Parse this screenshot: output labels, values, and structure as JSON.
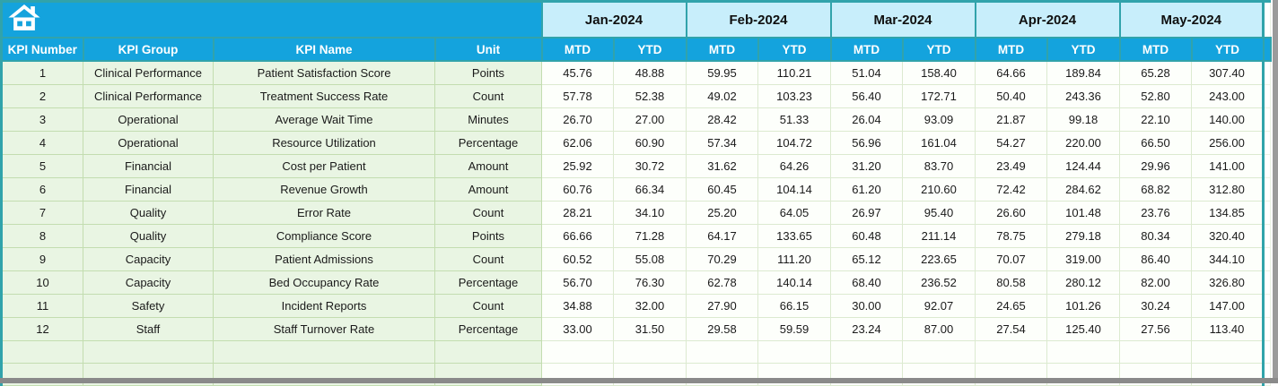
{
  "banner": {
    "home_icon": "home"
  },
  "table": {
    "left_headers": [
      "KPI Number",
      "KPI Group",
      "KPI Name",
      "Unit"
    ],
    "months": [
      "Jan-2024",
      "Feb-2024",
      "Mar-2024",
      "Apr-2024",
      "May-2024"
    ],
    "sub_headers": [
      "MTD",
      "YTD"
    ],
    "rows": [
      {
        "number": "1",
        "group": "Clinical Performance",
        "name": "Patient Satisfaction Score",
        "unit": "Points",
        "values": [
          "45.76",
          "48.88",
          "59.95",
          "110.21",
          "51.04",
          "158.40",
          "64.66",
          "189.84",
          "65.28",
          "307.40"
        ]
      },
      {
        "number": "2",
        "group": "Clinical Performance",
        "name": "Treatment Success Rate",
        "unit": "Count",
        "values": [
          "57.78",
          "52.38",
          "49.02",
          "103.23",
          "56.40",
          "172.71",
          "50.40",
          "243.36",
          "52.80",
          "243.00"
        ]
      },
      {
        "number": "3",
        "group": "Operational",
        "name": "Average Wait Time",
        "unit": "Minutes",
        "values": [
          "26.70",
          "27.00",
          "28.42",
          "51.33",
          "26.04",
          "93.09",
          "21.87",
          "99.18",
          "22.10",
          "140.00"
        ]
      },
      {
        "number": "4",
        "group": "Operational",
        "name": "Resource Utilization",
        "unit": "Percentage",
        "values": [
          "62.06",
          "60.90",
          "57.34",
          "104.72",
          "56.96",
          "161.04",
          "54.27",
          "220.00",
          "66.50",
          "256.00"
        ]
      },
      {
        "number": "5",
        "group": "Financial",
        "name": "Cost per Patient",
        "unit": "Amount",
        "values": [
          "25.92",
          "30.72",
          "31.62",
          "64.26",
          "31.20",
          "83.70",
          "23.49",
          "124.44",
          "29.96",
          "141.00"
        ]
      },
      {
        "number": "6",
        "group": "Financial",
        "name": "Revenue Growth",
        "unit": "Amount",
        "values": [
          "60.76",
          "66.34",
          "60.45",
          "104.14",
          "61.20",
          "210.60",
          "72.42",
          "284.62",
          "68.82",
          "312.80"
        ]
      },
      {
        "number": "7",
        "group": "Quality",
        "name": "Error Rate",
        "unit": "Count",
        "values": [
          "28.21",
          "34.10",
          "25.20",
          "64.05",
          "26.97",
          "95.40",
          "26.60",
          "101.48",
          "23.76",
          "134.85"
        ]
      },
      {
        "number": "8",
        "group": "Quality",
        "name": "Compliance Score",
        "unit": "Points",
        "values": [
          "66.66",
          "71.28",
          "64.17",
          "133.65",
          "60.48",
          "211.14",
          "78.75",
          "279.18",
          "80.34",
          "320.40"
        ]
      },
      {
        "number": "9",
        "group": "Capacity",
        "name": "Patient Admissions",
        "unit": "Count",
        "values": [
          "60.52",
          "55.08",
          "70.29",
          "111.20",
          "65.12",
          "223.65",
          "70.07",
          "319.00",
          "86.40",
          "344.10"
        ]
      },
      {
        "number": "10",
        "group": "Capacity",
        "name": "Bed Occupancy Rate",
        "unit": "Percentage",
        "values": [
          "56.70",
          "76.30",
          "62.78",
          "140.14",
          "68.40",
          "236.52",
          "80.58",
          "280.12",
          "82.00",
          "326.80"
        ]
      },
      {
        "number": "11",
        "group": "Safety",
        "name": "Incident Reports",
        "unit": "Count",
        "values": [
          "34.88",
          "32.00",
          "27.90",
          "66.15",
          "30.00",
          "92.07",
          "24.65",
          "101.26",
          "30.24",
          "147.00"
        ]
      },
      {
        "number": "12",
        "group": "Staff",
        "name": "Staff Turnover Rate",
        "unit": "Percentage",
        "values": [
          "33.00",
          "31.50",
          "29.58",
          "59.59",
          "23.24",
          "87.00",
          "27.54",
          "125.40",
          "27.56",
          "113.40"
        ]
      }
    ],
    "empty_rows": 2
  },
  "colors": {
    "header_blue": "#14a3dd",
    "month_cyan": "#c8eefb",
    "border_teal": "#31a3ab",
    "row_green": "#e9f5e3",
    "grid_green": "#c3ddb0",
    "window_gray": "#8a8a8a"
  }
}
